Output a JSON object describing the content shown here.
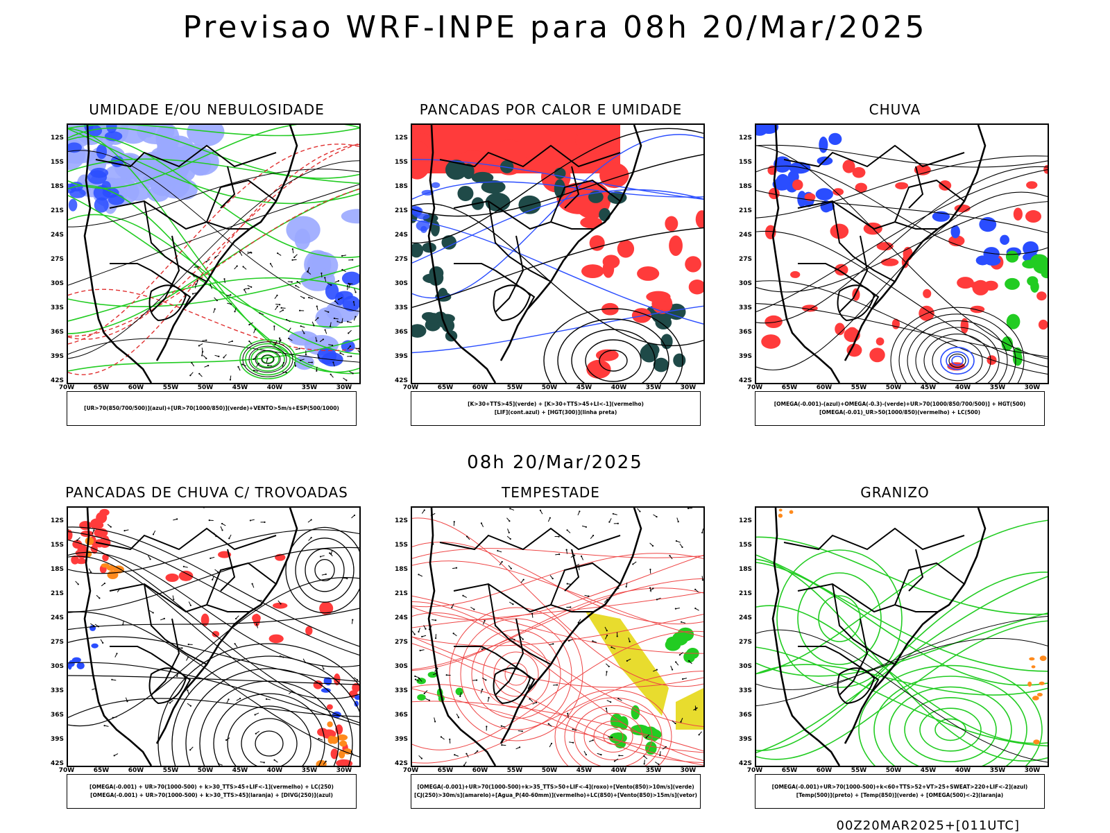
{
  "title": "Previsao WRF-INPE  para 08h 20/Mar/2025",
  "mid_title": "08h 20/Mar/2025",
  "footer": "00Z20MAR2025+[011UTC]",
  "axes": {
    "lat_labels": [
      "12S",
      "15S",
      "18S",
      "21S",
      "24S",
      "27S",
      "30S",
      "33S",
      "36S",
      "39S",
      "42S"
    ],
    "lon_labels": [
      "70W",
      "65W",
      "60W",
      "55W",
      "50W",
      "45W",
      "40W",
      "35W",
      "30W"
    ]
  },
  "colors": {
    "red": "#ff3b3b",
    "green": "#22cc22",
    "blue": "#2a4dff",
    "lightblue": "#9aa8ff",
    "darkteal": "#1f4a48",
    "yellow": "#e8dc2e",
    "orange": "#ff8a1c"
  },
  "panels": [
    {
      "title": "UMIDADE E/OU NEBULOSIDADE",
      "legend": [
        "[UR>70(850/700/500)](azul)+[UR>70(1000/850)](verde)+VENTO>5m/s+ESP(500/1000)"
      ]
    },
    {
      "title": "PANCADAS POR CALOR E UMIDADE",
      "legend": [
        "[K>30+TTS>45](verde)  +  [K>30+TTS>45+LI<-1](vermelho)",
        "[LIF](cont.azul)  +  [HGT(300)](linha preta)"
      ]
    },
    {
      "title": "CHUVA",
      "legend": [
        "[OMEGA(-0.001)-(azul)+OMEGA(-0.3)-(verde)+UR>70(1000/850/700/500)]  +  HGT(500)",
        "[OMEGA(-0.01)_UR>50(1000/850)(vermelho)  +  LC(500)"
      ]
    },
    {
      "title": "PANCADAS DE CHUVA C/ TROVOADAS",
      "legend": [
        "[OMEGA(-0.001)  +  UR>70(1000-500)  +  k>30_TTS>45+LIF<-1](vermelho)  +  LC(250)",
        "[OMEGA(-0.001)  +  UR>70(1000-500)  +  k>30_TTS>45](laranja)  +  [DIVG(250)](azul)"
      ]
    },
    {
      "title": "TEMPESTADE",
      "legend": [
        "[OMEGA(-0.001)+UR>70(1000-500)+k>35_TTS>50+LIF<-4](roxo)+[Vento(850)>10m/s](verde)",
        "[CJ(250)>30m/s](amarelo)+[Agua_P(40-60mm)](vermelho)+LC(850)+[Vento(850)>15m/s](vetor)"
      ]
    },
    {
      "title": "GRANIZO",
      "legend": [
        "[OMEGA(-0.001)+UR>70(1000-500)+k<60+TTS>52+VT>25+SWEAT>220+LIF<-2](azul)",
        "[Temp(500)](preto)  +  [Temp(850)](verde)  +  [OMEGA(500)<-2](laranja)"
      ]
    }
  ]
}
